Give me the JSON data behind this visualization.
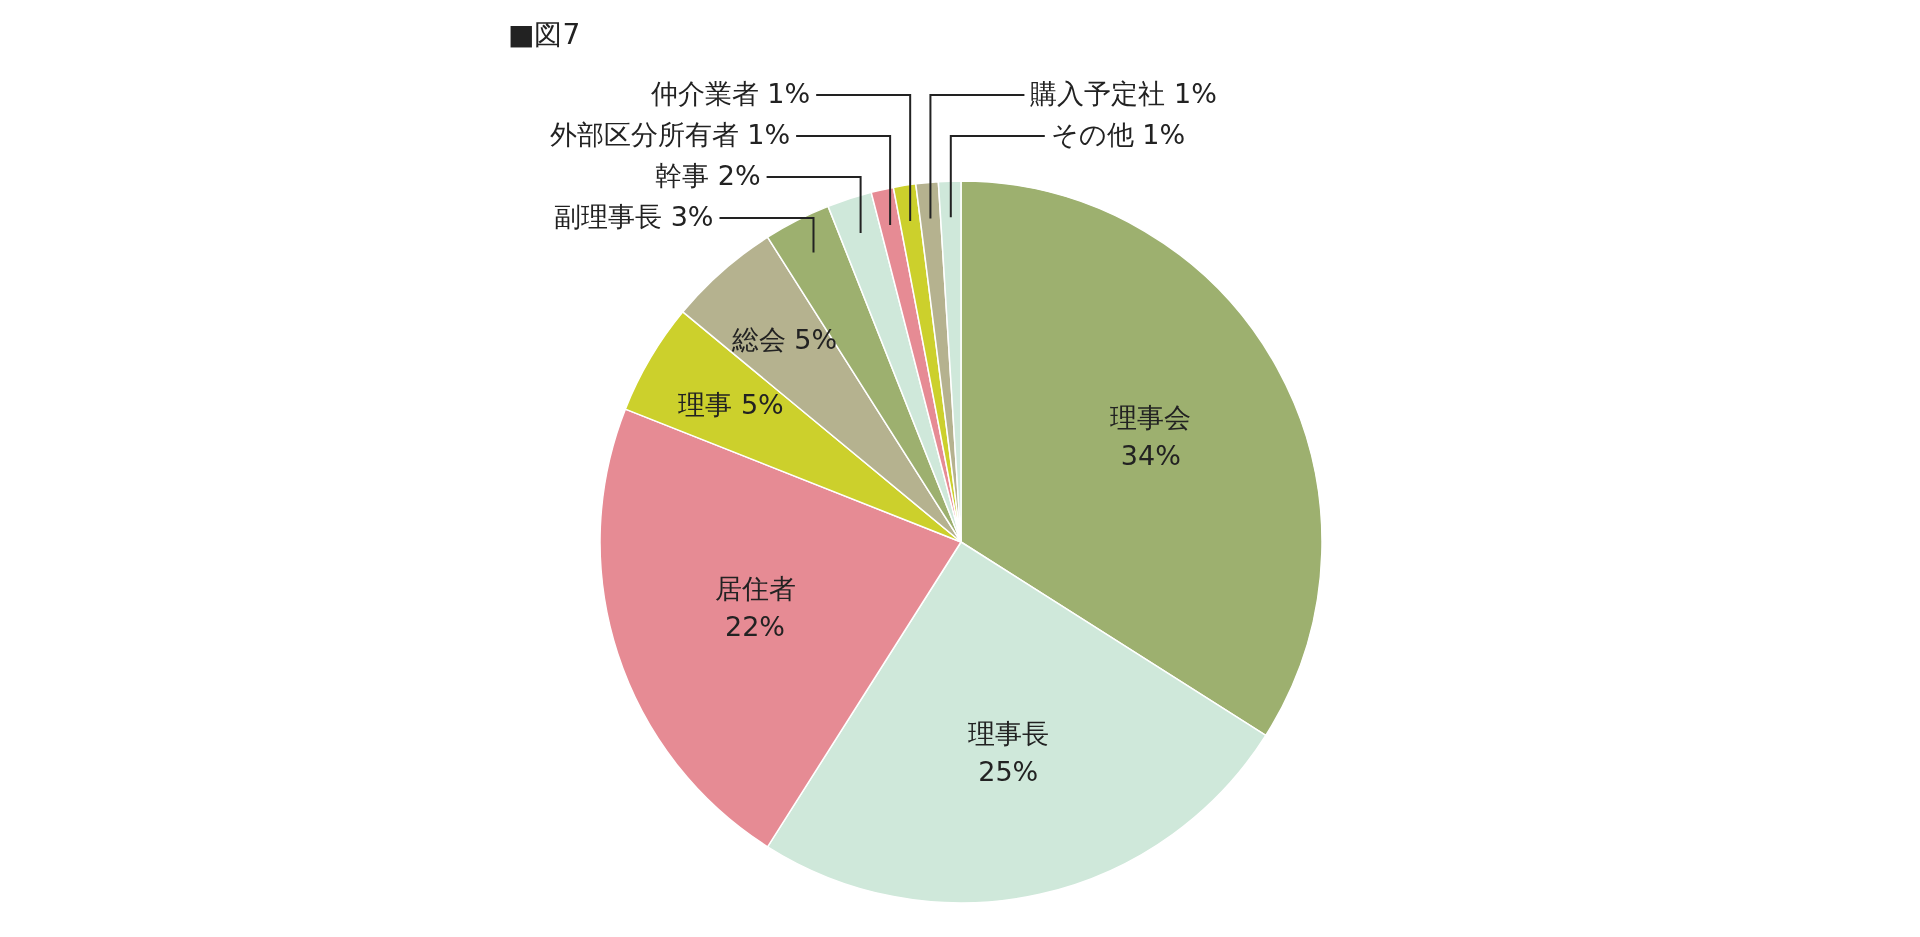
{
  "chart_data": {
    "type": "pie",
    "title": "■図7",
    "categories": [
      "理事会",
      "理事長",
      "居住者",
      "理事",
      "総会",
      "副理事長",
      "幹事",
      "外部区分所有者",
      "仲介業者",
      "購入予定社",
      "その他"
    ],
    "values": [
      34,
      25,
      22,
      5,
      5,
      3,
      2,
      1,
      1,
      1,
      1
    ],
    "colors": [
      "#9db06f",
      "#cfe8da",
      "#e68b94",
      "#ccd02c",
      "#b5b28f",
      "#9db06f",
      "#cfe8da",
      "#e68b94",
      "#ccd02c",
      "#b5b28f",
      "#cfe8da"
    ],
    "value_labels": [
      "34%",
      "25%",
      "22%",
      "5%",
      "5%",
      "3%",
      "2%",
      "1%",
      "1%",
      "1%",
      "1%"
    ]
  }
}
